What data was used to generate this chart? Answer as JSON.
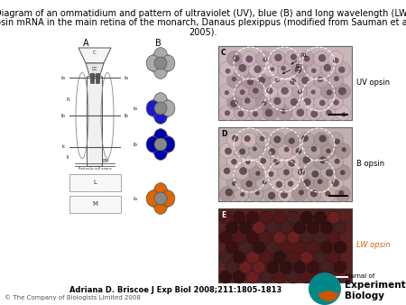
{
  "title_line1": "Diagram of an ommatidium and pattern of ultraviolet (UV), blue (B) and long wavelength (LW)",
  "title_line2": "opsin mRNA in the main retina of the monarch, Danaus plexippus (modified from Sauman et al.,",
  "title_line3": "2005).",
  "title_fontsize": 7.0,
  "title_color": "#000000",
  "bg_color": "#ffffff",
  "citation": "Adriana D. Briscoe J Exp Biol 2008;211:1805-1813",
  "citation_fontsize": 6.0,
  "copyright": "© The Company of Biologists Limited 2008",
  "copyright_fontsize": 5.0,
  "uv_opsin_label": "UV opsin",
  "b_opsin_label": "B opsin",
  "lw_opsin_label": "LW opsin",
  "uv_opsin_color": "#000000",
  "b_opsin_color": "#000000",
  "lw_opsin_color": "#cc6600",
  "gray_cell": "#aaaaaa",
  "blue_cell": "#1a1acc",
  "dark_blue_cell": "#0000aa",
  "orange_cell": "#dd6600",
  "white_cell": "#f0f0f0"
}
